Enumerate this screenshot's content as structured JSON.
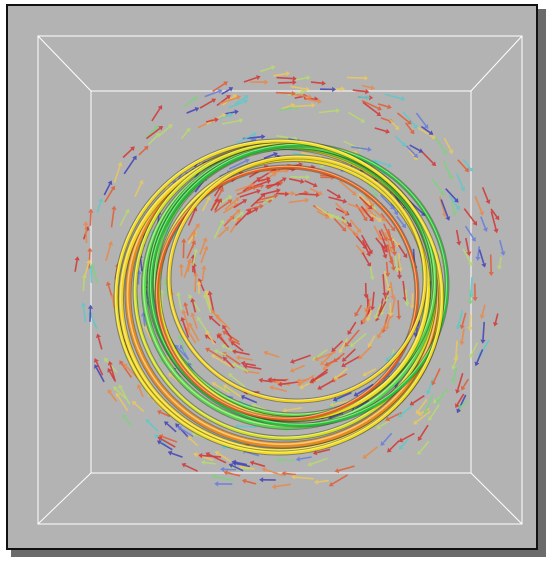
{
  "viewport": {
    "background": "#b3b3b3",
    "border_color": "#111111",
    "shadow_color": "#6b6b6b",
    "box_edge_color": "#ffffff"
  },
  "glyph_colors": [
    "#d13a3a",
    "#e0603a",
    "#e88a4a",
    "#e8c860",
    "#b8d870",
    "#7fd07f",
    "#60c8c8",
    "#6a7fd8",
    "#4646b8"
  ],
  "tube_colors": [
    "#e88a1a",
    "#f2d21a",
    "#d2e01a",
    "#52d84a",
    "#1ec23a",
    "#f0dc1a",
    "#e85a1a"
  ]
}
